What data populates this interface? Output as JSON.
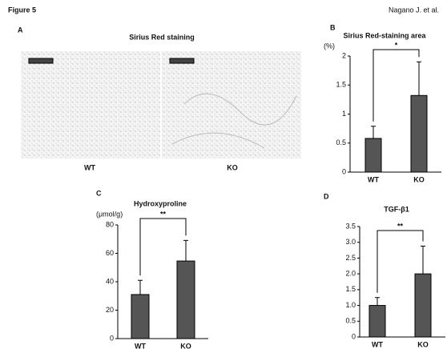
{
  "header": {
    "figure": "Figure 5",
    "author": "Nagano J. et al."
  },
  "panel_a": {
    "letter": "A",
    "title": "Sirius Red staining",
    "labels": [
      "WT",
      "KO"
    ]
  },
  "chart_data": [
    {
      "type": "bar",
      "letter": "B",
      "title": "Sirius Red-staining area",
      "y_unit": "(%)",
      "categories": [
        "WT",
        "KO"
      ],
      "values": [
        0.58,
        1.32
      ],
      "errors": [
        0.21,
        0.58
      ],
      "color": "#555555",
      "ylim": [
        0,
        2
      ],
      "yticks": [
        0,
        0.5,
        1,
        1.5,
        2
      ],
      "significance": "*"
    },
    {
      "type": "bar",
      "letter": "C",
      "title": "Hydroxyproline",
      "y_unit": "(μmol/g)",
      "categories": [
        "WT",
        "KO"
      ],
      "values": [
        31,
        54.6
      ],
      "errors": [
        10,
        14.5
      ],
      "color": "#555555",
      "ylim": [
        0,
        80
      ],
      "yticks": [
        0,
        20,
        40,
        60,
        80
      ],
      "significance": "**"
    },
    {
      "type": "bar",
      "letter": "D",
      "title": "TGF-β1",
      "categories": [
        "WT",
        "KO"
      ],
      "values": [
        1.0,
        2.0
      ],
      "errors": [
        0.25,
        0.88
      ],
      "color": "#555555",
      "ylim": [
        0,
        3.5
      ],
      "yticks": [
        0,
        0.5,
        {
          "value": 1,
          "label": "1.0"
        },
        1.5,
        {
          "value": 2,
          "label": "2.0"
        },
        2.5,
        {
          "value": 3,
          "label": "3.0"
        },
        3.5
      ],
      "significance": "**"
    }
  ]
}
